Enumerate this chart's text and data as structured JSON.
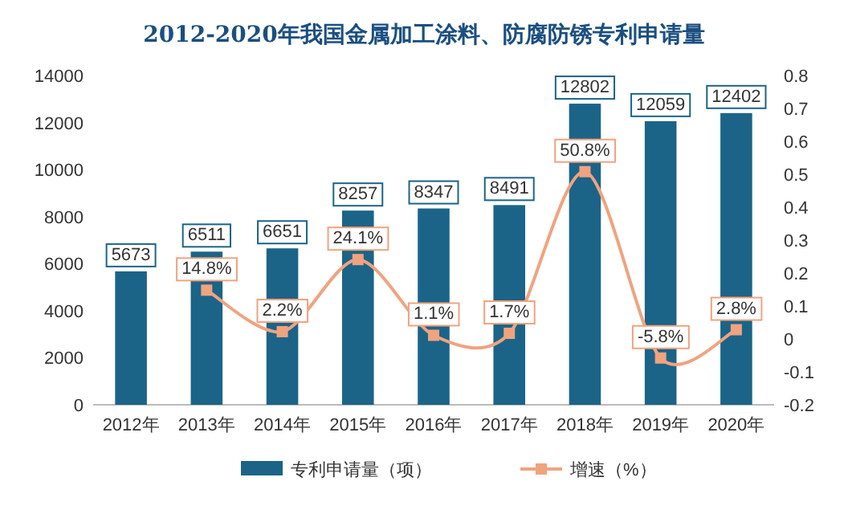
{
  "chart_data": {
    "type": "bar",
    "title": "2012-2020年我国金属加工涂料、防腐防锈专利申请量",
    "categories": [
      "2012年",
      "2013年",
      "2014年",
      "2015年",
      "2016年",
      "2017年",
      "2018年",
      "2019年",
      "2020年"
    ],
    "series": [
      {
        "name": "专利申请量（项）",
        "color": "#1b6488",
        "values": [
          5673,
          6511,
          6651,
          8257,
          8347,
          8491,
          12802,
          12059,
          12402
        ],
        "value_labels": [
          "5673",
          "6511",
          "6651",
          "8257",
          "8347",
          "8491",
          "12802",
          "12059",
          "12402"
        ]
      },
      {
        "name": "增速（%）",
        "type": "line",
        "axis": "y2",
        "color": "#f0a37f",
        "marker": "square",
        "line_style": "solid",
        "values": [
          null,
          0.148,
          0.022,
          0.241,
          0.011,
          0.017,
          0.508,
          -0.058,
          0.028
        ],
        "value_labels": [
          null,
          "14.8%",
          "2.2%",
          "24.1%",
          "1.1%",
          "1.7%",
          "50.8%",
          "-5.8%",
          "2.8%"
        ]
      }
    ],
    "ylim": [
      0,
      14000
    ],
    "yticks": [
      0,
      2000,
      4000,
      6000,
      8000,
      10000,
      12000,
      14000
    ],
    "y2lim": [
      -0.2,
      0.8
    ],
    "y2ticks": [
      -0.2,
      -0.1,
      0,
      0.1,
      0.2,
      0.3,
      0.4,
      0.5,
      0.6,
      0.7,
      0.8
    ],
    "legend": "bottom",
    "grid": false
  }
}
